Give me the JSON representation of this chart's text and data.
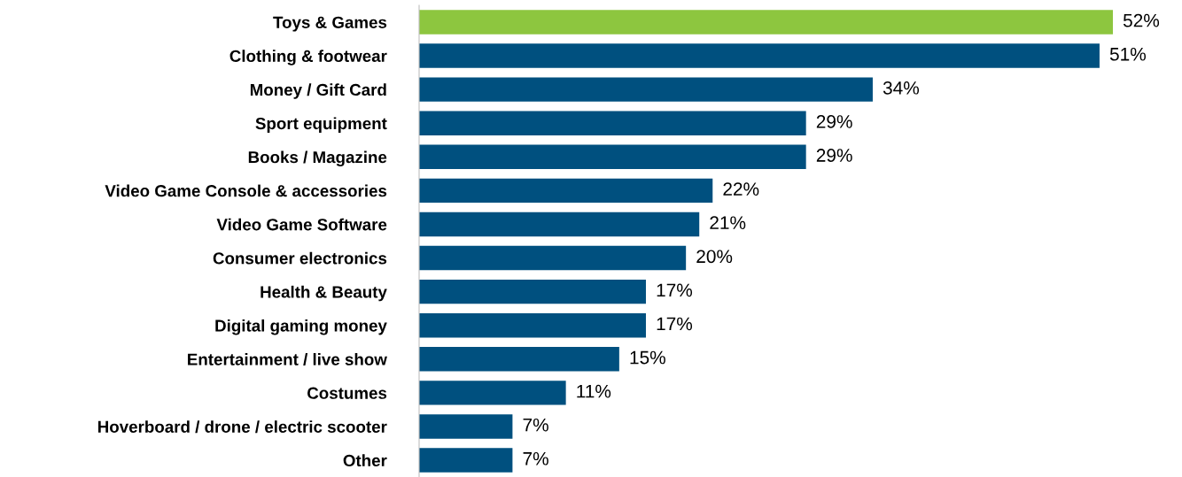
{
  "chart_data": {
    "type": "bar",
    "orientation": "horizontal",
    "categories": [
      "Toys & Games",
      "Clothing & footwear",
      "Money / Gift Card",
      "Sport equipment",
      "Books / Magazine",
      "Video Game Console & accessories",
      "Video Game Software",
      "Consumer electronics",
      "Health & Beauty",
      "Digital gaming money",
      "Entertainment / live show",
      "Costumes",
      "Hoverboard / drone / electric scooter",
      "Other"
    ],
    "values": [
      52,
      51,
      34,
      29,
      29,
      22,
      21,
      20,
      17,
      17,
      15,
      11,
      7,
      7
    ],
    "value_labels": [
      "52%",
      "51%",
      "34%",
      "29%",
      "29%",
      "22%",
      "21%",
      "20%",
      "17%",
      "17%",
      "15%",
      "11%",
      "7%",
      "7%"
    ],
    "colors": [
      "#8dc63f",
      "#00507f",
      "#00507f",
      "#00507f",
      "#00507f",
      "#00507f",
      "#00507f",
      "#00507f",
      "#00507f",
      "#00507f",
      "#00507f",
      "#00507f",
      "#00507f",
      "#00507f"
    ],
    "grid": false,
    "legend": false
  }
}
